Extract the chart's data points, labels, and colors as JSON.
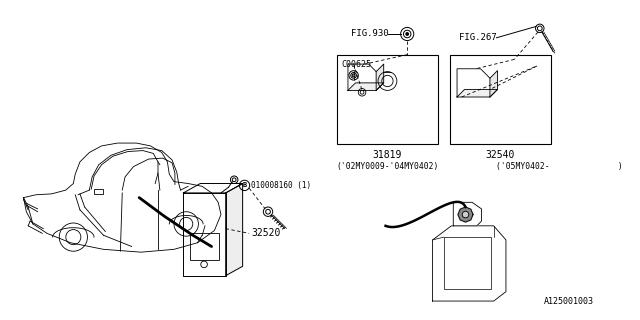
{
  "bg_color": "#ffffff",
  "line_color": "#000000",
  "fig_width": 6.4,
  "fig_height": 3.2,
  "watermark": "A125001003",
  "parts": {
    "main_unit": "32520",
    "bolt_circle": "B",
    "bolt_label": "010008160 (1)",
    "bracket1": "31819",
    "bracket2": "32540",
    "connector": "C00625",
    "fig930": "FIG.930",
    "fig267": "FIG.267",
    "date1": "('02MY0009-'04MY0402)",
    "date2": "('05MY0402-              )"
  }
}
